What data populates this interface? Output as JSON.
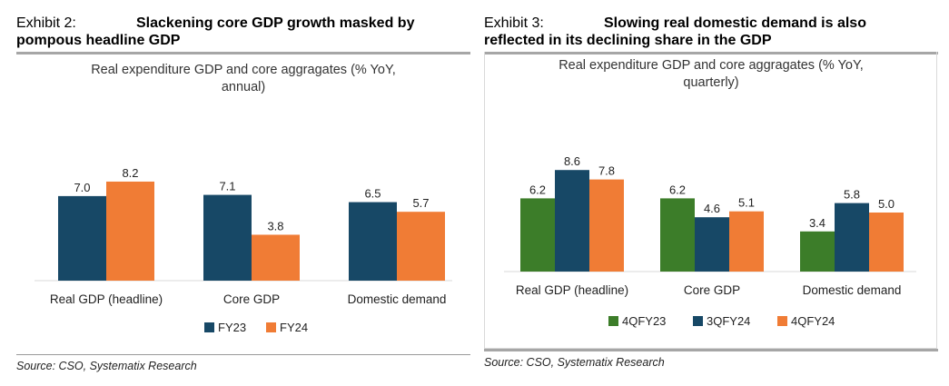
{
  "exhibits": [
    {
      "number": "Exhibit 2:",
      "title_line1": "Slackening core GDP growth masked by",
      "title_line2": "pompous headline GDP",
      "source": "Source: CSO, Systematix Research"
    },
    {
      "number": "Exhibit 3:",
      "title_line1": "Slowing real domestic demand is also",
      "title_line2": "reflected in its declining share in the GDP",
      "source": "Source: CSO, Systematix Research"
    }
  ],
  "chart_data": [
    {
      "type": "bar",
      "title_line1": "Real expenditure GDP and core aggragates (% YoY,",
      "title_line2": "annual)",
      "categories": [
        "Real GDP (headline)",
        "Core GDP",
        "Domestic demand"
      ],
      "series": [
        {
          "name": "FY23",
          "values": [
            7.0,
            7.1,
            6.5
          ],
          "labels": [
            "7.0",
            "7.1",
            "6.5"
          ],
          "color": "#174866"
        },
        {
          "name": "FY24",
          "values": [
            8.2,
            3.8,
            5.7
          ],
          "labels": [
            "8.2",
            "3.8",
            "5.7"
          ],
          "color": "#f07c35"
        }
      ],
      "ylim": [
        0,
        10
      ],
      "xlabel": "",
      "ylabel": "",
      "legend": "bottom"
    },
    {
      "type": "bar",
      "title_line1": "Real expenditure GDP and core aggragates (% YoY,",
      "title_line2": "quarterly)",
      "categories": [
        "Real GDP (headline)",
        "Core GDP",
        "Domestic demand"
      ],
      "series": [
        {
          "name": "4QFY23",
          "values": [
            6.2,
            6.2,
            3.4
          ],
          "labels": [
            "6.2",
            "6.2",
            "3.4"
          ],
          "color": "#3c7d29"
        },
        {
          "name": "3QFY24",
          "values": [
            8.6,
            4.6,
            5.8
          ],
          "labels": [
            "8.6",
            "4.6",
            "5.8"
          ],
          "color": "#174866"
        },
        {
          "name": "4QFY24",
          "values": [
            7.8,
            5.1,
            5.0
          ],
          "labels": [
            "7.8",
            "5.1",
            "5.0"
          ],
          "color": "#f07c35"
        }
      ],
      "ylim": [
        0,
        10
      ],
      "xlabel": "",
      "ylabel": "",
      "legend": "bottom"
    }
  ]
}
